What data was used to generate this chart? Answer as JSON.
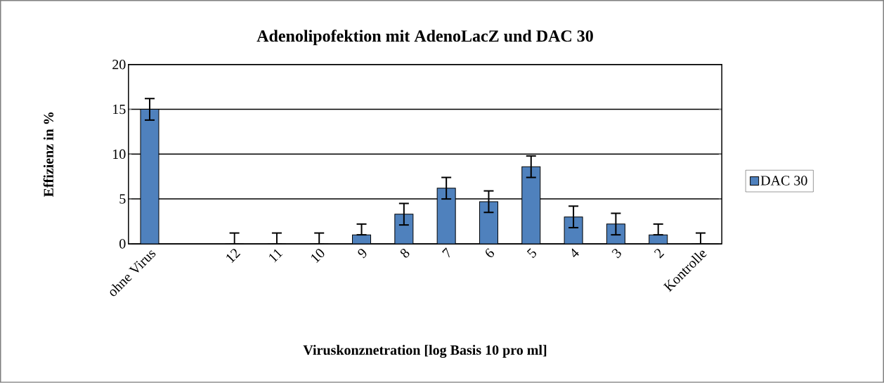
{
  "chart_data": {
    "type": "bar",
    "title": "Adenolipofektion mit AdenoLacZ und DAC 30",
    "xlabel": "Viruskonznetration  [log Basis 10 pro ml]",
    "ylabel": "Effizienz in %",
    "categories": [
      "ohne Virus",
      null,
      "12",
      "11",
      "10",
      "9",
      "8",
      "7",
      "6",
      "5",
      "4",
      "3",
      "2",
      "Kontrolle"
    ],
    "series": [
      {
        "name": "DAC 30",
        "color": "#4f81bd",
        "values": [
          15,
          null,
          0,
          0,
          0,
          1.0,
          3.3,
          6.2,
          4.7,
          8.6,
          3.0,
          2.2,
          1.0,
          0
        ],
        "errors": [
          1.2,
          null,
          [
            0,
            1.2
          ],
          [
            0,
            1.2
          ],
          [
            0,
            1.2
          ],
          [
            1.0,
            2.2
          ],
          1.2,
          1.2,
          1.2,
          1.2,
          1.2,
          1.2,
          [
            1.0,
            2.2
          ],
          [
            0,
            1.2
          ]
        ]
      }
    ],
    "ylim": [
      0,
      20
    ],
    "yticks": [
      0,
      5,
      10,
      15,
      20
    ],
    "grid": "y",
    "legend": "right"
  }
}
